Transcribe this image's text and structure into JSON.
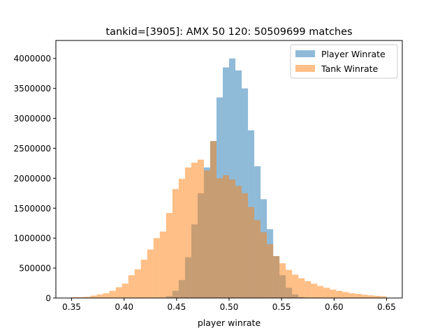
{
  "chart_data": {
    "type": "bar",
    "title": "tankid=[3905]: AMX 50 120: 50509699 matches",
    "xlabel": "player winrate",
    "ylabel": "",
    "xlim": [
      0.335,
      0.665
    ],
    "ylim": [
      0,
      4300000
    ],
    "xticks": [
      "0.35",
      "0.40",
      "0.45",
      "0.50",
      "0.55",
      "0.60",
      "0.65"
    ],
    "yticks": [
      "0",
      "500000",
      "1000000",
      "1500000",
      "2000000",
      "2500000",
      "3000000",
      "3500000",
      "4000000"
    ],
    "bin_edges": [
      0.35,
      0.356,
      0.362,
      0.368,
      0.374,
      0.38,
      0.386,
      0.392,
      0.398,
      0.404,
      0.41,
      0.416,
      0.422,
      0.428,
      0.434,
      0.44,
      0.446,
      0.452,
      0.458,
      0.464,
      0.47,
      0.476,
      0.482,
      0.488,
      0.494,
      0.5,
      0.506,
      0.512,
      0.518,
      0.524,
      0.53,
      0.536,
      0.542,
      0.548,
      0.554,
      0.56,
      0.566,
      0.572,
      0.578,
      0.584,
      0.59,
      0.596,
      0.602,
      0.608,
      0.614,
      0.62,
      0.626,
      0.632,
      0.638,
      0.644,
      0.65
    ],
    "legend_position": "top-right",
    "series": [
      {
        "name": "Player Winrate",
        "color": "#1f77b4",
        "alpha": 0.5,
        "values": [
          0,
          0,
          0,
          0,
          0,
          0,
          0,
          0,
          0,
          0,
          0,
          0,
          0,
          0,
          0,
          30000,
          120000,
          300000,
          680000,
          1230000,
          1750000,
          2180000,
          2620000,
          3350000,
          3850000,
          4000000,
          3800000,
          3500000,
          2800000,
          2200000,
          1650000,
          1150000,
          700000,
          380000,
          170000,
          60000,
          15000,
          0,
          0,
          0,
          0,
          0,
          0,
          0,
          0,
          0,
          0,
          0,
          0,
          0
        ]
      },
      {
        "name": "Tank Winrate",
        "color": "#ff7f0e",
        "alpha": 0.5,
        "values": [
          15000,
          15000,
          20000,
          40000,
          60000,
          80000,
          120000,
          180000,
          240000,
          380000,
          480000,
          640000,
          810000,
          1000000,
          1110000,
          1420000,
          1820000,
          1990000,
          2180000,
          2260000,
          2310000,
          2130000,
          2620000,
          2000000,
          2050000,
          1980000,
          1870000,
          1750000,
          1520000,
          1300000,
          1100000,
          900000,
          700000,
          580000,
          470000,
          390000,
          330000,
          280000,
          240000,
          200000,
          170000,
          140000,
          120000,
          100000,
          80000,
          70000,
          55000,
          45000,
          35000,
          30000
        ]
      }
    ]
  }
}
